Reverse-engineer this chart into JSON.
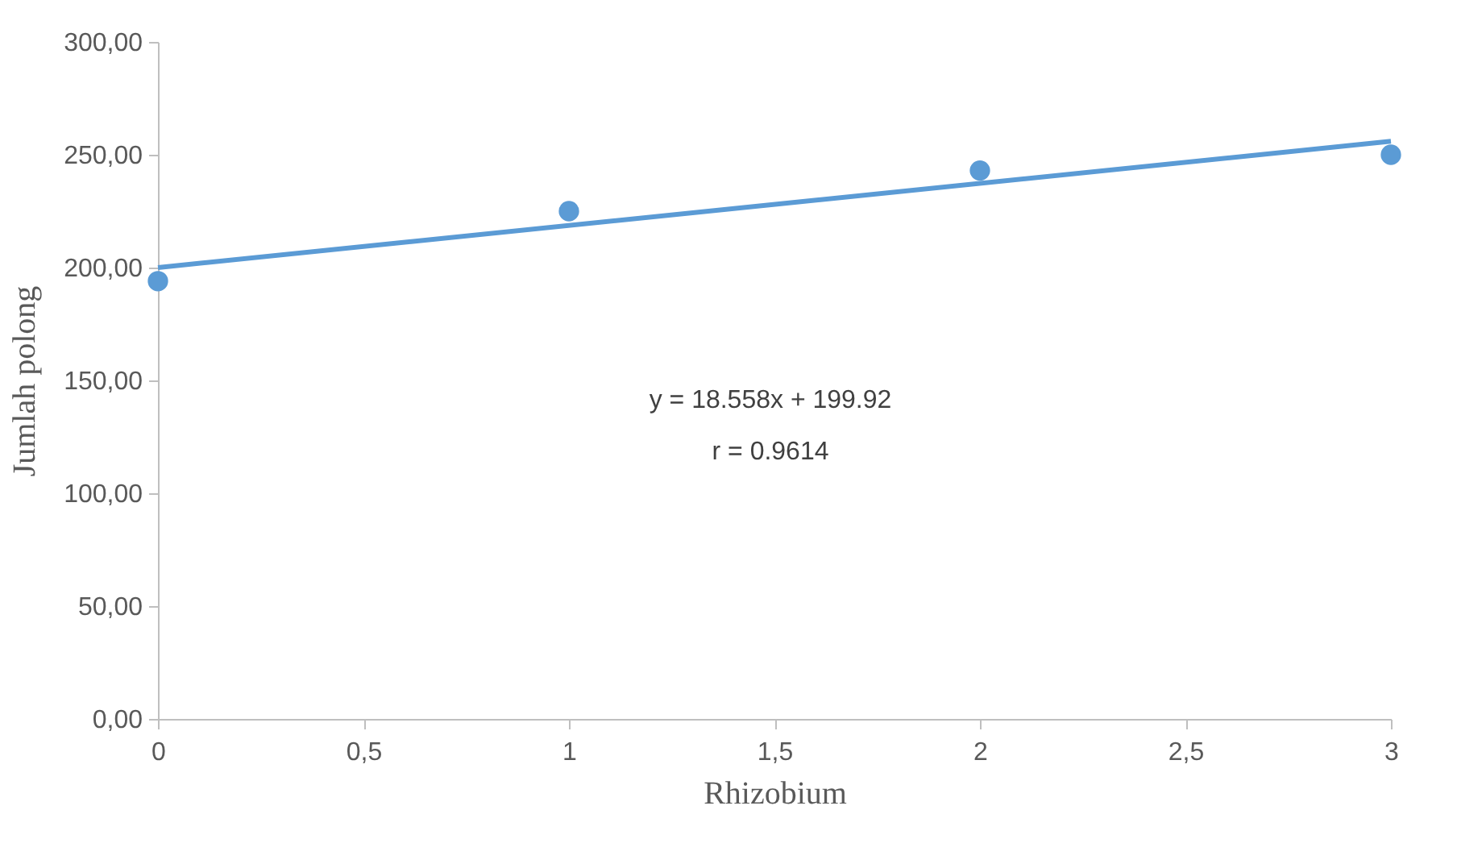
{
  "chart_data": {
    "type": "scatter",
    "xlabel": "Rhizobium",
    "ylabel": "Jumlah polong",
    "x": [
      0,
      1,
      2,
      3
    ],
    "series": [
      {
        "color": "#5b9bd5",
        "values": [
          194,
          225,
          243,
          250
        ],
        "marker": "circle"
      },
      {
        "type": "line",
        "color": "#5b9bd5",
        "x": [
          0,
          3
        ],
        "values": [
          200,
          256
        ],
        "line_style": "solid"
      }
    ],
    "xlim": [
      0,
      3
    ],
    "xticks": [
      0,
      {
        "value": 0.5,
        "label": "0,5"
      },
      1,
      {
        "value": 1.5,
        "label": "1,5"
      },
      2,
      {
        "value": 2.5,
        "label": "2,5"
      },
      3
    ],
    "ylim": [
      0,
      300
    ],
    "yticks": [
      {
        "value": 0,
        "label": "0,00"
      },
      {
        "value": 50,
        "label": "50,00"
      },
      {
        "value": 100,
        "label": "100,00"
      },
      {
        "value": 150,
        "label": "150,00"
      },
      {
        "value": 200,
        "label": "200,00"
      },
      {
        "value": 250,
        "label": "250,00"
      },
      {
        "value": 300,
        "label": "300,00"
      }
    ],
    "annotations": [
      "y = 18.558x + 199.92",
      "r = 0.9614"
    ],
    "grid": false
  }
}
